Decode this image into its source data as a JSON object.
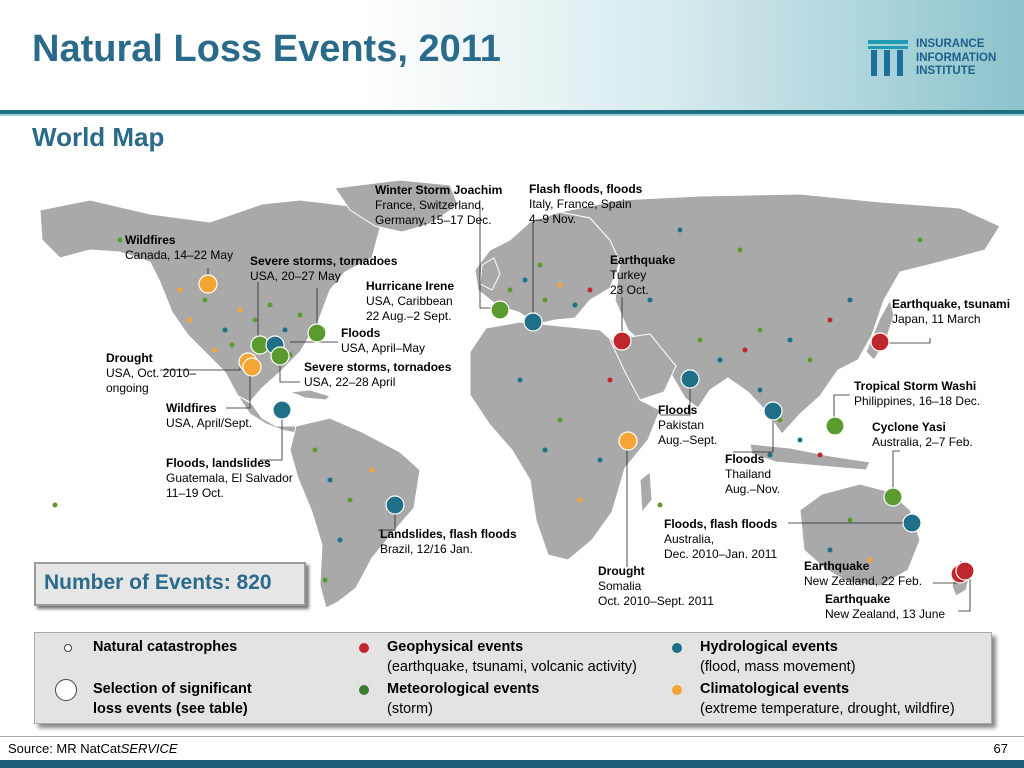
{
  "title": "Natural Loss Events, 2011",
  "subtitle": "World Map",
  "logo": {
    "line1": "INSURANCE",
    "line2": "INFORMATION",
    "line3": "INSTITUTE"
  },
  "count_label": "Number of Events: 820",
  "colors": {
    "geophysical": "#c0272d",
    "meteorological": "#5a9a2e",
    "hydrological": "#1f6f86",
    "climatological": "#f4a533",
    "title": "#2a6a8a"
  },
  "events": [
    {
      "title": "Winter Storm Joachim",
      "lines": [
        "France, Switzerland,",
        "Germany, 15–17 Dec."
      ],
      "category": "meteorological"
    },
    {
      "title": "Flash floods, floods",
      "lines": [
        "Italy, France, Spain",
        "4–9 Nov."
      ],
      "category": "hydrological"
    },
    {
      "title": "Wildfires",
      "lines": [
        "Canada, 14–22 May"
      ],
      "category": "climatological"
    },
    {
      "title": "Severe storms, tornadoes",
      "lines": [
        "USA, 20–27 May"
      ],
      "category": "meteorological"
    },
    {
      "title": "Earthquake",
      "lines": [
        "Turkey",
        "23 Oct."
      ],
      "category": "geophysical"
    },
    {
      "title": "Hurricane Irene",
      "lines": [
        "USA, Caribbean",
        "22 Aug.–2 Sept."
      ],
      "category": "meteorological"
    },
    {
      "title": "Earthquake, tsunami",
      "lines": [
        "Japan, 11 March"
      ],
      "category": "geophysical"
    },
    {
      "title": "Floods",
      "lines": [
        "USA, April–May"
      ],
      "category": "hydrological"
    },
    {
      "title": "Drought",
      "lines": [
        "USA, Oct. 2010–",
        "ongoing"
      ],
      "category": "climatological"
    },
    {
      "title": "Severe storms, tornadoes",
      "lines": [
        "USA, 22–28 April"
      ],
      "category": "meteorological"
    },
    {
      "title": "Tropical Storm Washi",
      "lines": [
        "Philippines, 16–18 Dec."
      ],
      "category": "meteorological"
    },
    {
      "title": "Wildfires",
      "lines": [
        "USA, April/Sept."
      ],
      "category": "climatological"
    },
    {
      "title": "Floods",
      "lines": [
        "Pakistan",
        "Aug.–Sept."
      ],
      "category": "hydrological"
    },
    {
      "title": "Cyclone Yasi",
      "lines": [
        "Australia, 2–7 Feb."
      ],
      "category": "meteorological"
    },
    {
      "title": "Floods",
      "lines": [
        "Thailand",
        "Aug.–Nov."
      ],
      "category": "hydrological"
    },
    {
      "title": "Floods, landslides",
      "lines": [
        "Guatemala, El Salvador",
        "11–19 Oct."
      ],
      "category": "hydrological"
    },
    {
      "title": "Floods, flash floods",
      "lines": [
        "Australia,",
        "Dec. 2010–Jan. 2011"
      ],
      "category": "hydrological"
    },
    {
      "title": "Landslides, flash floods",
      "lines": [
        "Brazil, 12/16 Jan."
      ],
      "category": "hydrological"
    },
    {
      "title": "Drought",
      "lines": [
        "Somalia",
        "Oct. 2010–Sept. 2011"
      ],
      "category": "climatological"
    },
    {
      "title": "Earthquake",
      "lines": [
        "New Zealand, 22 Feb."
      ],
      "category": "geophysical"
    },
    {
      "title": "Earthquake",
      "lines": [
        "New Zealand, 13 June"
      ],
      "category": "geophysical"
    }
  ],
  "legend": {
    "natural": "Natural catastrophes",
    "selection_1": "Selection of significant",
    "selection_2": "loss events (see table)",
    "geo_title": "Geophysical events",
    "geo_desc": "(earthquake, tsunami, volcanic activity)",
    "met_title": "Meteorological events",
    "met_desc": "(storm)",
    "hyd_title": "Hydrological events",
    "hyd_desc": "(flood, mass movement)",
    "cli_title": "Climatological events",
    "cli_desc": "(extreme temperature, drought, wildfire)"
  },
  "source_prefix": "Source: MR NatCat",
  "source_italic": "SERVICE",
  "page_number": "67"
}
